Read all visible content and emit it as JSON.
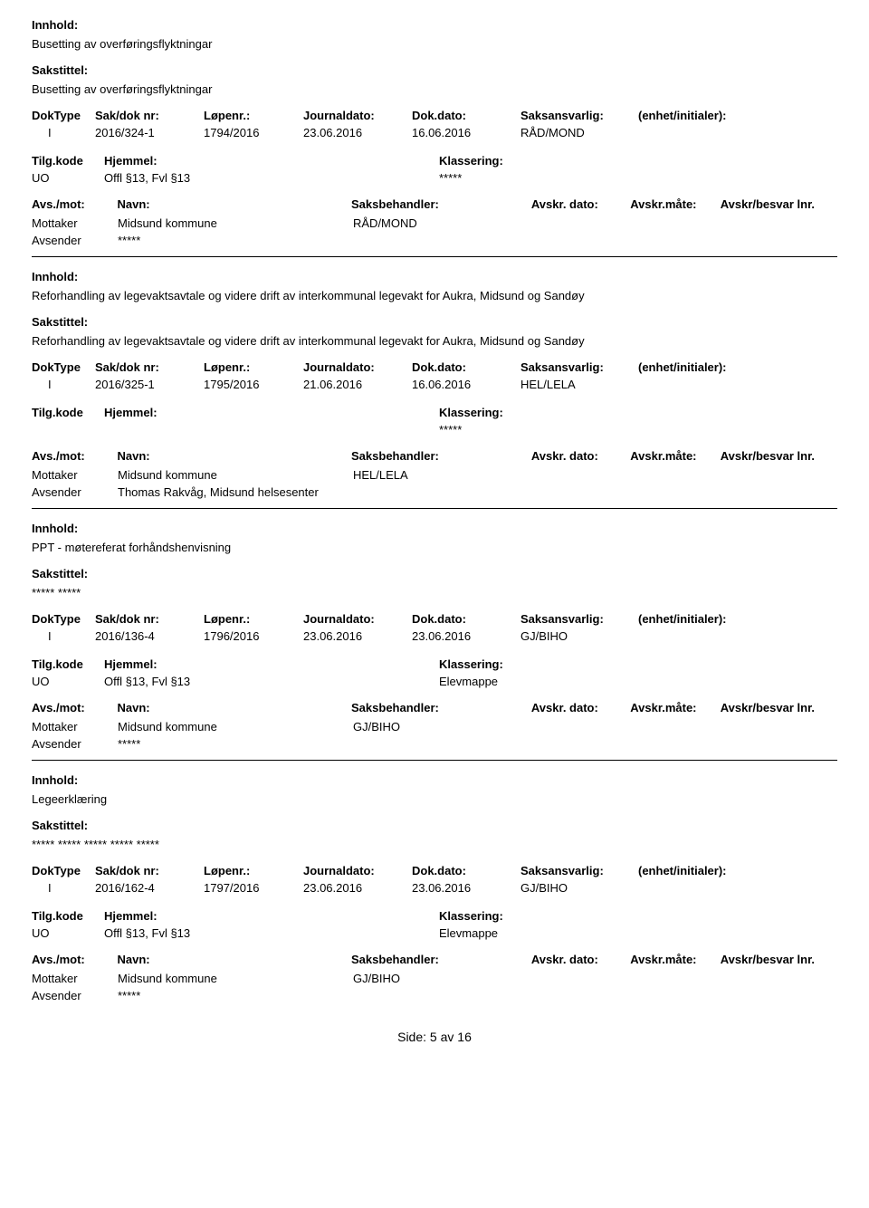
{
  "labels": {
    "innhold": "Innhold:",
    "sakstittel": "Sakstittel:",
    "doktype": "DokType",
    "sakdok": "Sak/dok nr:",
    "lopenr": "Løpenr.:",
    "journaldato": "Journaldato:",
    "dokdato": "Dok.dato:",
    "saksansvarlig": "Saksansvarlig:",
    "enhet": "(enhet/initialer):",
    "tilgkode": "Tilg.kode",
    "hjemmel": "Hjemmel:",
    "klassering": "Klassering:",
    "avsmot": "Avs./mot:",
    "navn": "Navn:",
    "saksbehandler": "Saksbehandler:",
    "avskrdato": "Avskr. dato:",
    "avskrmate": "Avskr.måte:",
    "avskrbesvar": "Avskr/besvar lnr.",
    "mottaker": "Mottaker",
    "avsender": "Avsender"
  },
  "entries": [
    {
      "innhold": "Busetting av overføringsflyktningar",
      "sakstittel": "Busetting av overføringsflyktningar",
      "doktype": "I",
      "sakdok": "2016/324-1",
      "lopenr": "1794/2016",
      "jdato": "23.06.2016",
      "ddato": "16.06.2016",
      "saksansvarlig": "RÅD/MOND",
      "enhet": "",
      "tilgkode": "UO",
      "hjemmel": "Offl §13, Fvl §13",
      "klassering": "*****",
      "saksbehandler": "RÅD/MOND",
      "mottaker": "Midsund kommune",
      "avsender": "*****"
    },
    {
      "innhold": "Reforhandling av legevaktsavtale og videre drift av interkommunal legevakt for Aukra, Midsund og Sandøy",
      "sakstittel": "Reforhandling av legevaktsavtale og videre drift av interkommunal legevakt for Aukra, Midsund og Sandøy",
      "doktype": "I",
      "sakdok": "2016/325-1",
      "lopenr": "1795/2016",
      "jdato": "21.06.2016",
      "ddato": "16.06.2016",
      "saksansvarlig": "HEL/LELA",
      "enhet": "",
      "tilgkode": "",
      "hjemmel": "",
      "klassering": "*****",
      "saksbehandler": "HEL/LELA",
      "mottaker": "Midsund kommune",
      "avsender": "Thomas Rakvåg, Midsund helsesenter"
    },
    {
      "innhold": "PPT - møtereferat forhåndshenvisning",
      "sakstittel": "***** *****",
      "doktype": "I",
      "sakdok": "2016/136-4",
      "lopenr": "1796/2016",
      "jdato": "23.06.2016",
      "ddato": "23.06.2016",
      "saksansvarlig": "GJ/BIHO",
      "enhet": "",
      "tilgkode": "UO",
      "hjemmel": "Offl §13, Fvl §13",
      "klassering": "Elevmappe",
      "saksbehandler": "GJ/BIHO",
      "mottaker": "Midsund kommune",
      "avsender": "*****"
    },
    {
      "innhold": "Legeerklæring",
      "sakstittel": "***** ***** ***** ***** *****",
      "doktype": "I",
      "sakdok": "2016/162-4",
      "lopenr": "1797/2016",
      "jdato": "23.06.2016",
      "ddato": "23.06.2016",
      "saksansvarlig": "GJ/BIHO",
      "enhet": "",
      "tilgkode": "UO",
      "hjemmel": "Offl §13, Fvl §13",
      "klassering": "Elevmappe",
      "saksbehandler": "GJ/BIHO",
      "mottaker": "Midsund kommune",
      "avsender": "*****"
    }
  ],
  "footer": {
    "prefix": "Side:",
    "page": "5",
    "sep": "av",
    "total": "16"
  }
}
